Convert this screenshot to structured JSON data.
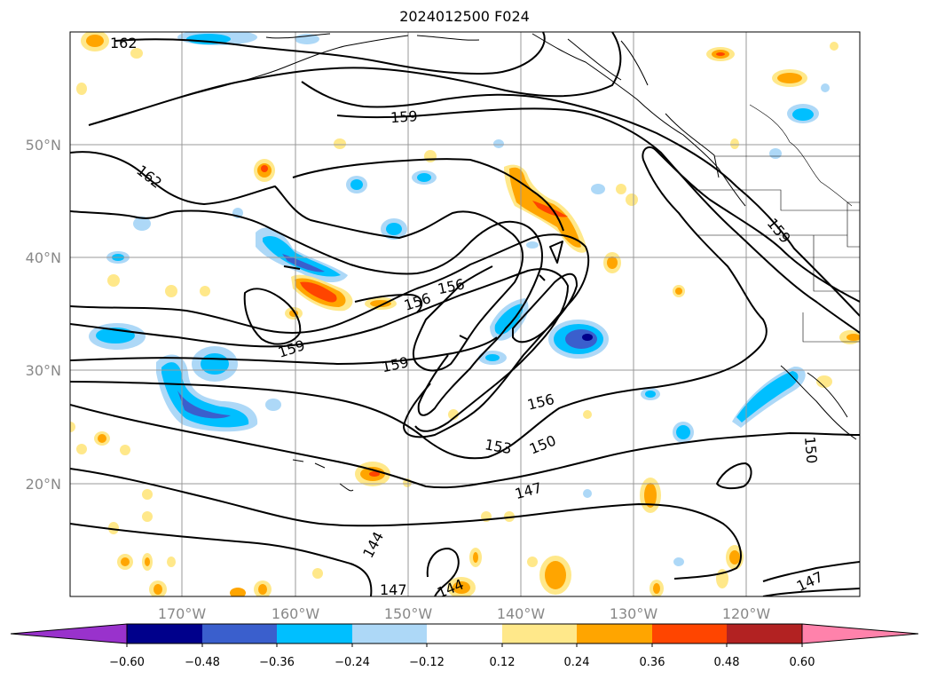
{
  "title": "2024012500 F024",
  "map": {
    "lat_labels": [
      "50°N",
      "40°N",
      "30°N",
      "20°N"
    ],
    "lon_labels": [
      "170°W",
      "160°W",
      "150°W",
      "140°W",
      "130°W",
      "120°W"
    ],
    "contour_labels": [
      "162",
      "162",
      "159",
      "159",
      "159",
      "159",
      "156",
      "156",
      "156",
      "153",
      "150",
      "150",
      "147",
      "147",
      "147",
      "144",
      "144"
    ],
    "contour_color": "#000000",
    "grid_color": "#999999"
  },
  "colorbar": {
    "ticks": [
      "−0.60",
      "−0.48",
      "−0.36",
      "−0.24",
      "−0.12",
      "0.12",
      "0.24",
      "0.36",
      "0.48",
      "0.60"
    ],
    "colors": [
      "#9932cc",
      "#00008b",
      "#3a5fcd",
      "#00bfff",
      "#add8f7",
      "#ffffff",
      "#ffe88a",
      "#ffa500",
      "#ff4500",
      "#b22222",
      "#ff82ab"
    ]
  }
}
